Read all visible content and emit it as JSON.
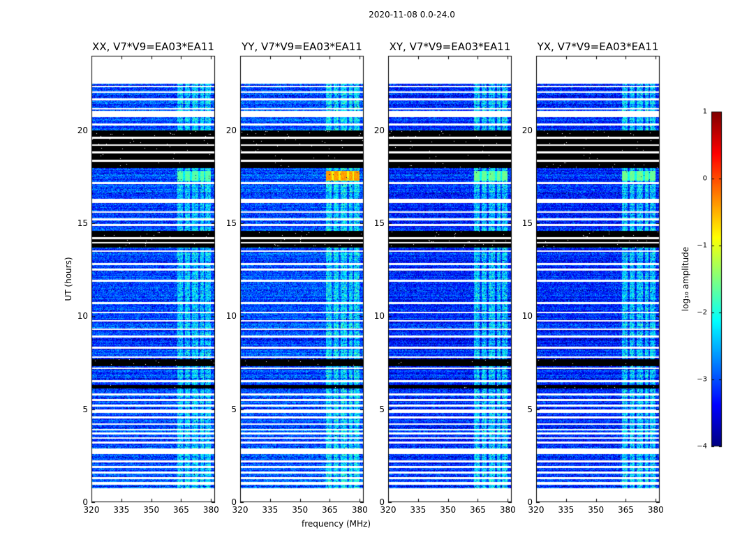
{
  "figure_title": "2020-11-08 0.0-24.0",
  "colors": {
    "no_data": "#000000",
    "gap": "#ffffff",
    "frame": "#000000",
    "colormap": "jet"
  },
  "chart_data": {
    "type": "heatmap",
    "suptitle": "2020-11-08 0.0-24.0",
    "xlabel": "frequency (MHz)",
    "ylabel": "UT (hours)",
    "xlim": [
      320,
      382
    ],
    "ylim": [
      0,
      24
    ],
    "xticks": [
      "320",
      "335",
      "350",
      "365",
      "380"
    ],
    "xtick_values": [
      320,
      335,
      350,
      365,
      380
    ],
    "yticks": [
      "0",
      "5",
      "10",
      "15",
      "20"
    ],
    "ytick_values": [
      0,
      5,
      10,
      15,
      20
    ],
    "panels": [
      {
        "title": "XX, V7*V9=EA03*EA11",
        "base_level": -3.0,
        "band_strength": 0.7,
        "burst_level": -1.7
      },
      {
        "title": "YY, V7*V9=EA03*EA11",
        "base_level": -2.95,
        "band_strength": 0.75,
        "burst_level": -0.4
      },
      {
        "title": "XY, V7*V9=EA03*EA11",
        "base_level": -3.15,
        "band_strength": 0.85,
        "burst_level": -1.6
      },
      {
        "title": "YX, V7*V9=EA03*EA11",
        "base_level": -3.15,
        "band_strength": 0.85,
        "burst_level": -1.6
      }
    ],
    "rfi_band_mhz": [
      [
        363,
        366
      ],
      [
        367,
        369.5
      ],
      [
        370.5,
        373.5
      ],
      [
        374.5,
        376.5
      ],
      [
        377,
        380
      ]
    ],
    "bright_burst_hours": [
      17.3,
      17.8
    ],
    "bright_burst_mhz": [
      363,
      380
    ],
    "blank_hours": [
      [
        22.5,
        24.0
      ],
      [
        20.7,
        21.05
      ],
      [
        20.25,
        20.35
      ],
      [
        17.1,
        17.22
      ],
      [
        16.1,
        16.3
      ],
      [
        4.8,
        5.0
      ],
      [
        2.6,
        2.9
      ],
      [
        0.95,
        1.1
      ],
      [
        0.0,
        0.75
      ]
    ],
    "gap_lines_hours": [
      22.35,
      22.05,
      21.65,
      21.15,
      19.6,
      19.2,
      18.8,
      18.35,
      15.6,
      15.2,
      14.9,
      14.2,
      13.95,
      13.5,
      12.8,
      12.5,
      11.9,
      10.7,
      10.2,
      9.75,
      9.3,
      8.9,
      8.3,
      7.8,
      7.2,
      6.5,
      5.8,
      5.5,
      5.2,
      4.55,
      4.2,
      3.9,
      3.7,
      3.45,
      3.2,
      2.2,
      1.9,
      1.6,
      1.3
    ],
    "flagged_blocks_hours": [
      [
        17.95,
        20.0
      ],
      [
        13.7,
        14.6
      ],
      [
        7.3,
        7.7
      ],
      [
        6.1,
        6.3
      ]
    ],
    "colorbar": {
      "label": "log₁₀ amplitude",
      "min": -4,
      "max": 1,
      "ticks": [
        "1",
        "0",
        "−1",
        "−2",
        "−3",
        "−4"
      ],
      "tick_values": [
        1,
        0,
        -1,
        -2,
        -3,
        -4
      ]
    }
  }
}
